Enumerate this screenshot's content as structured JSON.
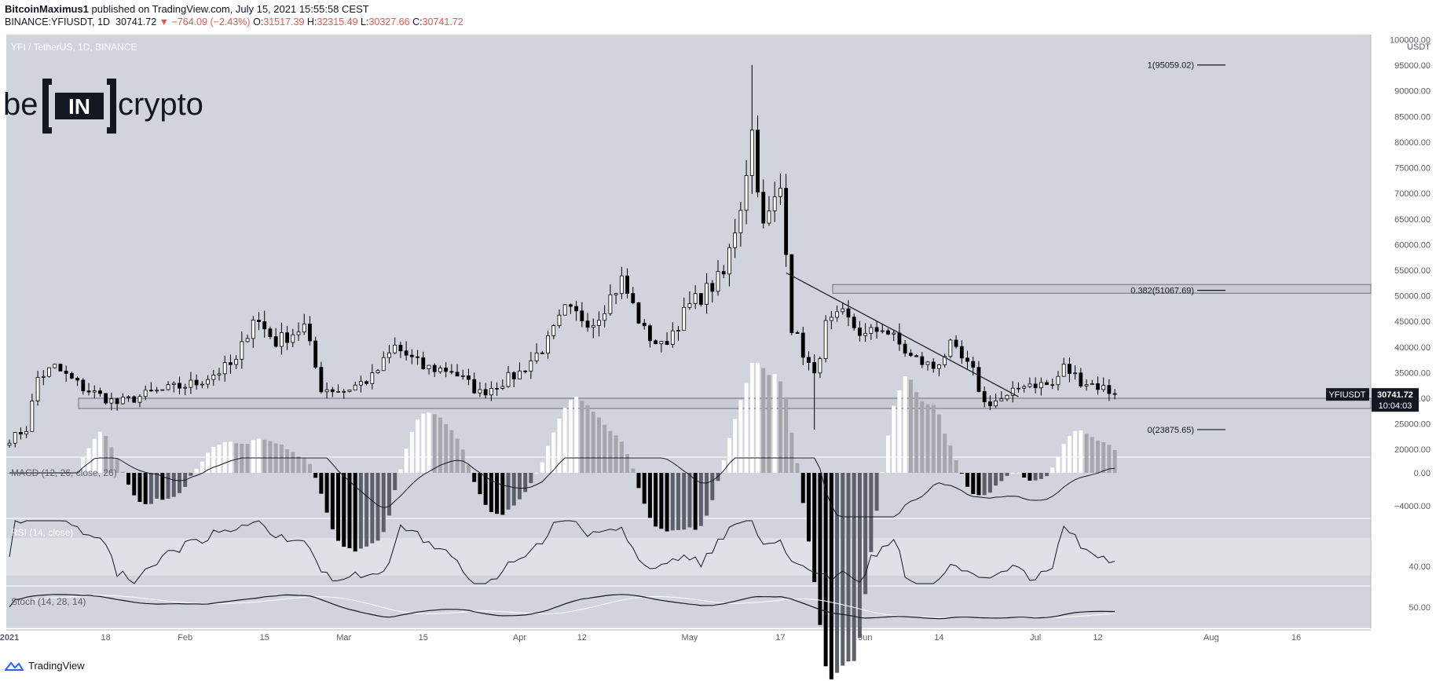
{
  "header": {
    "author": "BitcoinMaximus1",
    "published_text": "published on TradingView.com, July 15, 2021 15:55:58 CEST",
    "symbol": "BINANCE:YFIUSDT, 1D",
    "last": "30741.72",
    "change_arrow": "▼",
    "change": "−764.09 (−2.43%)",
    "o_label": "O:",
    "o": "31517.39",
    "h_label": "H:",
    "h": "32315.49",
    "l_label": "L:",
    "l": "30327.66",
    "c_label": "C:",
    "c": "30741.72"
  },
  "chart_title": "YFI / TetherUS, 1D, BINANCE",
  "logo_text": {
    "left": "be",
    "mid": "IN",
    "right": "crypto"
  },
  "footer_text": "TradingView",
  "colors": {
    "pane_bg": "#d1d4dc",
    "rsi_band": "#dfe1e7",
    "candle_up": "#ffffff",
    "candle_down": "#000000",
    "accent_red": "#ef5350"
  },
  "chart_data": {
    "type": "candlestick",
    "main": {
      "currency": "USDT",
      "y_ticks": [
        20000,
        25000,
        30000,
        35000,
        40000,
        45000,
        50000,
        55000,
        60000,
        65000,
        70000,
        75000,
        80000,
        85000,
        90000,
        95000,
        100000
      ],
      "y_tick_labels": [
        "20000.00",
        "25000.00",
        "30000.00",
        "35000.00",
        "40000.00",
        "45000.00",
        "50000.00",
        "55000.00",
        "60000.00",
        "65000.00",
        "70000.00",
        "75000.00",
        "80000.00",
        "85000.00",
        "90000.00",
        "95000.00",
        "100000.00"
      ],
      "ylim": [
        18500,
        101000
      ],
      "anchors": [
        [
          "2021-01-01",
          22000
        ],
        [
          "2021-01-04",
          24000
        ],
        [
          "2021-01-06",
          34000
        ],
        [
          "2021-01-09",
          36000
        ],
        [
          "2021-01-14",
          32000
        ],
        [
          "2021-01-20",
          29000
        ],
        [
          "2021-01-26",
          31000
        ],
        [
          "2021-02-03",
          33000
        ],
        [
          "2021-02-10",
          37000
        ],
        [
          "2021-02-13",
          46000
        ],
        [
          "2021-02-17",
          41000
        ],
        [
          "2021-02-22",
          44000
        ],
        [
          "2021-02-25",
          32000
        ],
        [
          "2021-03-01",
          31500
        ],
        [
          "2021-03-06",
          34000
        ],
        [
          "2021-03-10",
          40000
        ],
        [
          "2021-03-15",
          36000
        ],
        [
          "2021-03-20",
          35500
        ],
        [
          "2021-03-25",
          31000
        ],
        [
          "2021-04-01",
          35000
        ],
        [
          "2021-04-06",
          41000
        ],
        [
          "2021-04-09",
          47000
        ],
        [
          "2021-04-14",
          45000
        ],
        [
          "2021-04-19",
          53000
        ],
        [
          "2021-04-23",
          43000
        ],
        [
          "2021-04-26",
          40000
        ],
        [
          "2021-05-01",
          48000
        ],
        [
          "2021-05-07",
          54000
        ],
        [
          "2021-05-10",
          68000
        ],
        [
          "2021-05-12",
          82000
        ],
        [
          "2021-05-14",
          63000
        ],
        [
          "2021-05-17",
          71000
        ],
        [
          "2021-05-18",
          60000
        ],
        [
          "2021-05-19",
          44000
        ],
        [
          "2021-05-23",
          34000
        ],
        [
          "2021-05-25",
          44000
        ],
        [
          "2021-05-28",
          46000
        ],
        [
          "2021-06-01",
          42000
        ],
        [
          "2021-06-04",
          44000
        ],
        [
          "2021-06-09",
          38000
        ],
        [
          "2021-06-13",
          36000
        ],
        [
          "2021-06-16",
          40000
        ],
        [
          "2021-06-20",
          35000
        ],
        [
          "2021-06-22",
          29000
        ],
        [
          "2021-06-26",
          30000
        ],
        [
          "2021-06-29",
          33000
        ],
        [
          "2021-07-04",
          32500
        ],
        [
          "2021-07-06",
          36000
        ],
        [
          "2021-07-09",
          33500
        ],
        [
          "2021-07-13",
          32000
        ],
        [
          "2021-07-15",
          30741.72
        ]
      ],
      "notable_high": {
        "date": "2021-05-12",
        "value": 95059.02
      },
      "notable_low": {
        "date": "2021-05-23",
        "value": 23875.65
      },
      "support_zone": [
        28000,
        30000
      ],
      "resistance_zone": [
        50500,
        52200
      ],
      "fib_levels": [
        {
          "label": "1(95059.02)",
          "value": 95059.02
        },
        {
          "label": "0.382(51067.69)",
          "value": 51067.69
        },
        {
          "label": "0(23875.65)",
          "value": 23875.65
        }
      ],
      "trendline": {
        "start": [
          "2021-05-18",
          54500
        ],
        "end": [
          "2021-06-28",
          30300
        ]
      },
      "last_label": "YFIUSDT",
      "last_value": "30741.72",
      "countdown": "10:04:03"
    },
    "macd": {
      "label": "MACD (12, 26, close, 26)",
      "y_ticks": [
        "0.00",
        "−4000.00"
      ]
    },
    "rsi": {
      "label": "RSI (14, close)",
      "y_ticks": [
        "40.00"
      ],
      "value_range": [
        30,
        70
      ]
    },
    "stoch": {
      "label": "Stoch (14, 28, 14)",
      "y_ticks": [
        "50.00"
      ]
    },
    "x_axis": {
      "start_date": "2021-01-01",
      "end_date": "2021-08-25",
      "tick_labels": [
        {
          "date": "2021-01-01",
          "label": "2021",
          "bold": true
        },
        {
          "date": "2021-01-18",
          "label": "18"
        },
        {
          "date": "2021-02-01",
          "label": "Feb"
        },
        {
          "date": "2021-02-15",
          "label": "15"
        },
        {
          "date": "2021-03-01",
          "label": "Mar"
        },
        {
          "date": "2021-03-15",
          "label": "15"
        },
        {
          "date": "2021-04-01",
          "label": "Apr"
        },
        {
          "date": "2021-04-12",
          "label": "12"
        },
        {
          "date": "2021-05-01",
          "label": "May"
        },
        {
          "date": "2021-05-17",
          "label": "17"
        },
        {
          "date": "2021-06-01",
          "label": "Jun"
        },
        {
          "date": "2021-06-14",
          "label": "14"
        },
        {
          "date": "2021-07-01",
          "label": "Jul"
        },
        {
          "date": "2021-07-12",
          "label": "12"
        },
        {
          "date": "2021-08-01",
          "label": "Aug"
        },
        {
          "date": "2021-08-16",
          "label": "16"
        }
      ]
    }
  }
}
